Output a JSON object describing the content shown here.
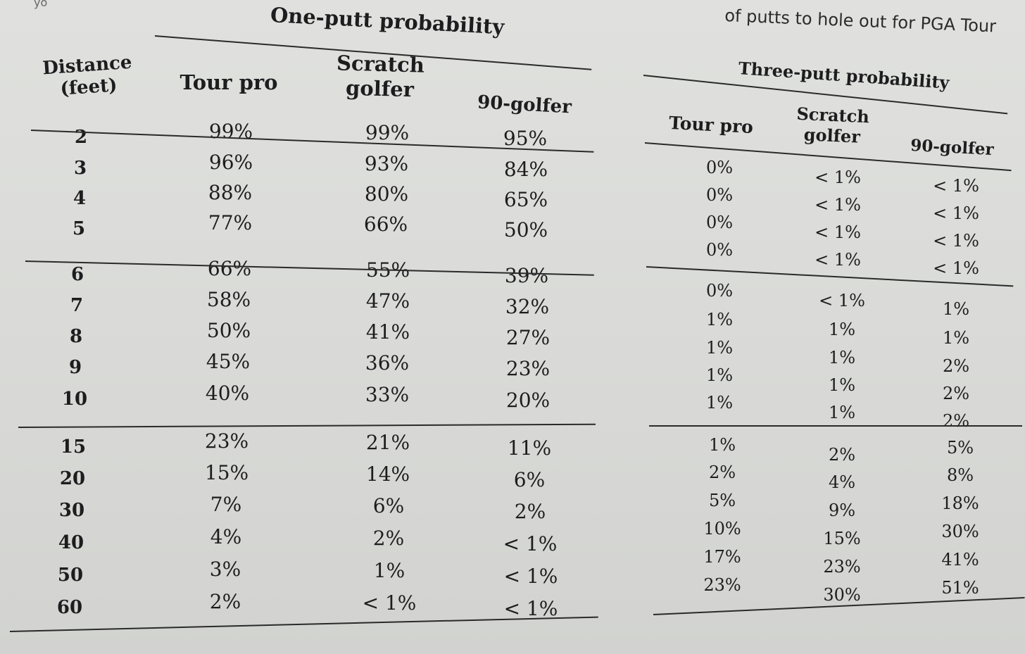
{
  "page": {
    "corner_fragment": "yo",
    "caption_fragment": "of putts to hole out for PGA Tour"
  },
  "one_putt": {
    "title": "One-putt probability",
    "distance_header_line1": "Distance",
    "distance_header_line2": "(feet)",
    "headers": [
      "Tour pro",
      "Scratch golfer",
      "90-golfer"
    ],
    "rows": [
      {
        "distance": "2",
        "tour_pro": "99%",
        "scratch": "99%",
        "golfer90": "95%"
      },
      {
        "distance": "3",
        "tour_pro": "96%",
        "scratch": "93%",
        "golfer90": "84%"
      },
      {
        "distance": "4",
        "tour_pro": "88%",
        "scratch": "80%",
        "golfer90": "65%"
      },
      {
        "distance": "5",
        "tour_pro": "77%",
        "scratch": "66%",
        "golfer90": "50%"
      },
      {
        "distance": "6",
        "tour_pro": "66%",
        "scratch": "55%",
        "golfer90": "39%"
      },
      {
        "distance": "7",
        "tour_pro": "58%",
        "scratch": "47%",
        "golfer90": "32%"
      },
      {
        "distance": "8",
        "tour_pro": "50%",
        "scratch": "41%",
        "golfer90": "27%"
      },
      {
        "distance": "9",
        "tour_pro": "45%",
        "scratch": "36%",
        "golfer90": "23%"
      },
      {
        "distance": "10",
        "tour_pro": "40%",
        "scratch": "33%",
        "golfer90": "20%"
      },
      {
        "distance": "15",
        "tour_pro": "23%",
        "scratch": "21%",
        "golfer90": "11%"
      },
      {
        "distance": "20",
        "tour_pro": "15%",
        "scratch": "14%",
        "golfer90": "6%"
      },
      {
        "distance": "30",
        "tour_pro": "7%",
        "scratch": "6%",
        "golfer90": "2%"
      },
      {
        "distance": "40",
        "tour_pro": "4%",
        "scratch": "2%",
        "golfer90": "< 1%"
      },
      {
        "distance": "50",
        "tour_pro": "3%",
        "scratch": "1%",
        "golfer90": "< 1%"
      },
      {
        "distance": "60",
        "tour_pro": "2%",
        "scratch": "< 1%",
        "golfer90": "< 1%"
      }
    ]
  },
  "three_putt": {
    "title": "Three-putt probability",
    "headers": [
      "Tour pro",
      "Scratch golfer",
      "90-golfer"
    ],
    "rows": [
      {
        "tour_pro": "0%",
        "scratch": "< 1%",
        "golfer90": "< 1%"
      },
      {
        "tour_pro": "0%",
        "scratch": "< 1%",
        "golfer90": "< 1%"
      },
      {
        "tour_pro": "0%",
        "scratch": "< 1%",
        "golfer90": "< 1%"
      },
      {
        "tour_pro": "0%",
        "scratch": "< 1%",
        "golfer90": "< 1%"
      },
      {
        "tour_pro": "0%",
        "scratch": "< 1%",
        "golfer90": "1%"
      },
      {
        "tour_pro": "1%",
        "scratch": "1%",
        "golfer90": "1%"
      },
      {
        "tour_pro": "1%",
        "scratch": "1%",
        "golfer90": "2%"
      },
      {
        "tour_pro": "1%",
        "scratch": "1%",
        "golfer90": "2%"
      },
      {
        "tour_pro": "1%",
        "scratch": "1%",
        "golfer90": "2%"
      },
      {
        "tour_pro": "1%",
        "scratch": "2%",
        "golfer90": "5%"
      },
      {
        "tour_pro": "2%",
        "scratch": "4%",
        "golfer90": "8%"
      },
      {
        "tour_pro": "5%",
        "scratch": "9%",
        "golfer90": "18%"
      },
      {
        "tour_pro": "10%",
        "scratch": "15%",
        "golfer90": "30%"
      },
      {
        "tour_pro": "17%",
        "scratch": "23%",
        "golfer90": "41%"
      },
      {
        "tour_pro": "23%",
        "scratch": "30%",
        "golfer90": "51%"
      }
    ]
  }
}
